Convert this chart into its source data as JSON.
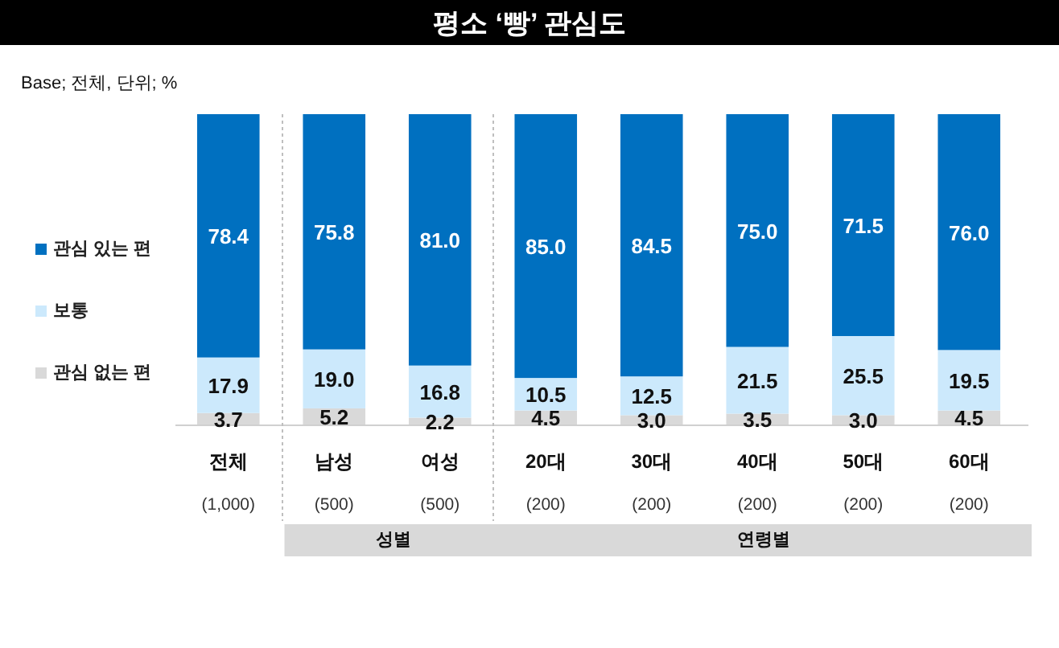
{
  "chart_data": {
    "type": "bar",
    "stacked": true,
    "title": "평소 ‘빵’ 관심도",
    "subtitle": "Base; 전체, 단위; %",
    "categories": [
      "전체\n(1,000)",
      "남성\n(500)",
      "여성\n(500)",
      "20대\n(200)",
      "30대\n(200)",
      "40대\n(200)",
      "50대\n(200)",
      "60대\n(200)"
    ],
    "series": [
      {
        "name": "관심 없는 편",
        "color": "#d9d9d9",
        "values": [
          3.7,
          5.2,
          2.2,
          4.5,
          3.0,
          3.5,
          3.0,
          4.5
        ],
        "value_labels": [
          "3.7",
          "5.2",
          "2.2",
          "4.5",
          "3.0",
          "3.5",
          "3.0",
          "4.5"
        ]
      },
      {
        "name": "보통",
        "color": "#cce9fc",
        "values": [
          17.9,
          19.0,
          16.8,
          10.5,
          12.5,
          21.5,
          25.5,
          19.5
        ],
        "value_labels": [
          "17.9",
          "19.0",
          "16.8",
          "10.5",
          "12.5",
          "21.5",
          "25.5",
          "19.5"
        ]
      },
      {
        "name": "관심 있는 편",
        "color": "#0070c0",
        "values": [
          78.4,
          75.8,
          81.0,
          85.0,
          84.5,
          75.0,
          71.5,
          76.0
        ],
        "value_labels": [
          "78.4",
          "75.8",
          "81.0",
          "85.0",
          "84.5",
          "75.0",
          "71.5",
          "76.0"
        ]
      }
    ],
    "legend": "left",
    "tick_labels": "x",
    "annotations": [
      "성별",
      "연령별"
    ]
  }
}
